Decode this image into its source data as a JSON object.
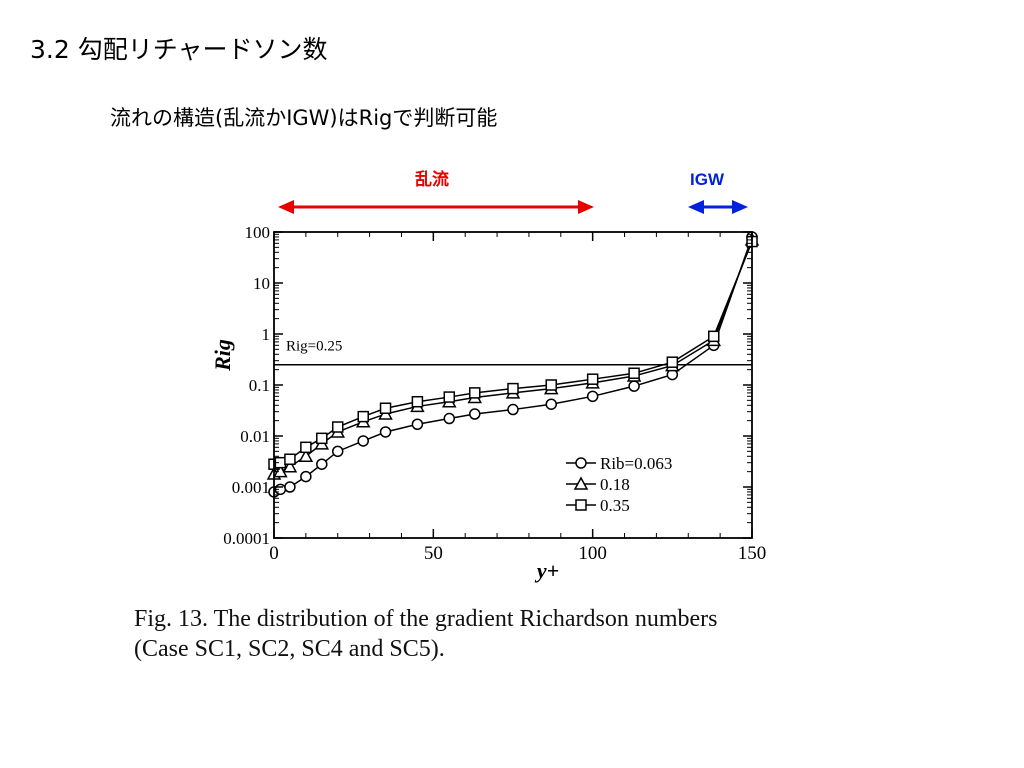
{
  "slide": {
    "title": "3.2 勾配リチャードソン数",
    "subtitle": "流れの構造(乱流かIGW)はRigで判断可能"
  },
  "annotations": {
    "turbulent_label": "乱流",
    "igw_label": "IGW",
    "colors": {
      "turbulent": "#e60000",
      "igw": "#0022dd"
    }
  },
  "chart_data": {
    "type": "line",
    "xlabel": "y+",
    "ylabel": "Rig",
    "xlim": [
      0,
      150
    ],
    "ylim": [
      0.0001,
      100
    ],
    "yscale": "log",
    "xticks": [
      "0",
      "50",
      "100",
      "150"
    ],
    "yticks": [
      "0.0001",
      "0.001",
      "0.01",
      "0.1",
      "1",
      "10",
      "100"
    ],
    "x": [
      0,
      2,
      5,
      10,
      15,
      20,
      28,
      35,
      45,
      55,
      63,
      75,
      87,
      100,
      113,
      125,
      138,
      150
    ],
    "series": [
      {
        "name": "Rib=0.063",
        "marker": "circle",
        "values": [
          0.0008,
          0.0009,
          0.001,
          0.0016,
          0.0028,
          0.005,
          0.008,
          0.012,
          0.017,
          0.022,
          0.027,
          0.033,
          0.042,
          0.06,
          0.095,
          0.16,
          0.6,
          80
        ]
      },
      {
        "name": "0.18",
        "marker": "triangle",
        "values": [
          0.0018,
          0.002,
          0.0025,
          0.004,
          0.007,
          0.012,
          0.019,
          0.027,
          0.038,
          0.047,
          0.057,
          0.07,
          0.085,
          0.11,
          0.15,
          0.24,
          0.75,
          70
        ]
      },
      {
        "name": "0.35",
        "marker": "square",
        "values": [
          0.0028,
          0.003,
          0.0035,
          0.006,
          0.009,
          0.015,
          0.024,
          0.035,
          0.047,
          0.058,
          0.07,
          0.085,
          0.1,
          0.13,
          0.17,
          0.28,
          0.9,
          65
        ]
      }
    ],
    "reference_line": {
      "value": 0.25,
      "label": "Rig=0.25"
    },
    "legend": {
      "position": "bottom-right",
      "labels": [
        "Rib=0.063",
        "0.18",
        "0.35"
      ]
    },
    "caption": [
      "Fig.  13. The distribution of the gradient Richardson numbers",
      "(Case SC1, SC2, SC4 and SC5)."
    ]
  }
}
